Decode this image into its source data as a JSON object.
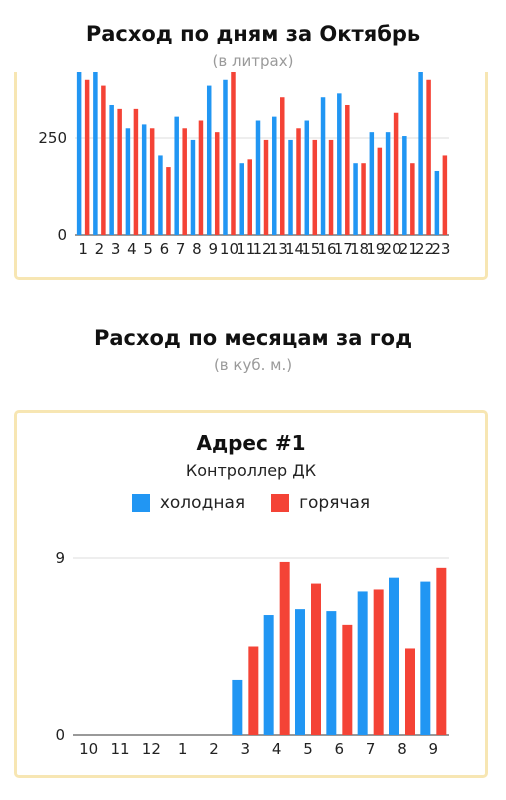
{
  "daily": {
    "title": "Расход по дням за Октябрь",
    "subtitle": "(в литрах)"
  },
  "monthly": {
    "title": "Расход по месяцам за год",
    "subtitle": "(в куб. м.)",
    "card_title": "Адрес #1",
    "card_subtitle": "Контроллер ДК"
  },
  "colors": {
    "cold": "#2196f3",
    "hot": "#f44336",
    "card_border": "#f7e6b3",
    "grid": "#dddddd"
  },
  "chart_data": [
    {
      "type": "bar",
      "title": "Расход по дням за Октябрь",
      "subtitle": "(в литрах)",
      "categories": [
        "1",
        "2",
        "3",
        "4",
        "5",
        "6",
        "7",
        "8",
        "9",
        "10",
        "11",
        "12",
        "13",
        "14",
        "15",
        "16",
        "17",
        "18",
        "19",
        "20",
        "21",
        "22",
        "23"
      ],
      "series": [
        {
          "name": "холодная",
          "color": "#2196f3",
          "values": [
            420,
            420,
            335,
            275,
            285,
            205,
            305,
            245,
            385,
            400,
            185,
            295,
            305,
            245,
            295,
            355,
            365,
            185,
            265,
            265,
            255,
            420,
            165
          ]
        },
        {
          "name": "горячая",
          "color": "#f44336",
          "values": [
            400,
            385,
            325,
            325,
            275,
            175,
            275,
            295,
            265,
            420,
            195,
            245,
            355,
            275,
            245,
            245,
            335,
            185,
            225,
            315,
            185,
            400,
            205
          ]
        }
      ],
      "yticks": [
        0,
        250
      ],
      "ylim": [
        0,
        420
      ],
      "grid": true
    },
    {
      "type": "bar",
      "title": "Адрес #1",
      "subtitle": "Контроллер ДК",
      "categories": [
        "10",
        "11",
        "12",
        "1",
        "2",
        "3",
        "4",
        "5",
        "6",
        "7",
        "8",
        "9"
      ],
      "series": [
        {
          "name": "холодная",
          "color": "#2196f3",
          "values": [
            0,
            0,
            0,
            0,
            0,
            2.8,
            6.1,
            6.4,
            6.3,
            7.3,
            8.0,
            7.8
          ]
        },
        {
          "name": "горячая",
          "color": "#f44336",
          "values": [
            0,
            0,
            0,
            0,
            0,
            4.5,
            8.8,
            7.7,
            5.6,
            7.4,
            4.4,
            8.5
          ]
        }
      ],
      "yticks": [
        0,
        9
      ],
      "ylim": [
        0,
        9
      ],
      "legend": "top-center",
      "grid": true
    }
  ]
}
